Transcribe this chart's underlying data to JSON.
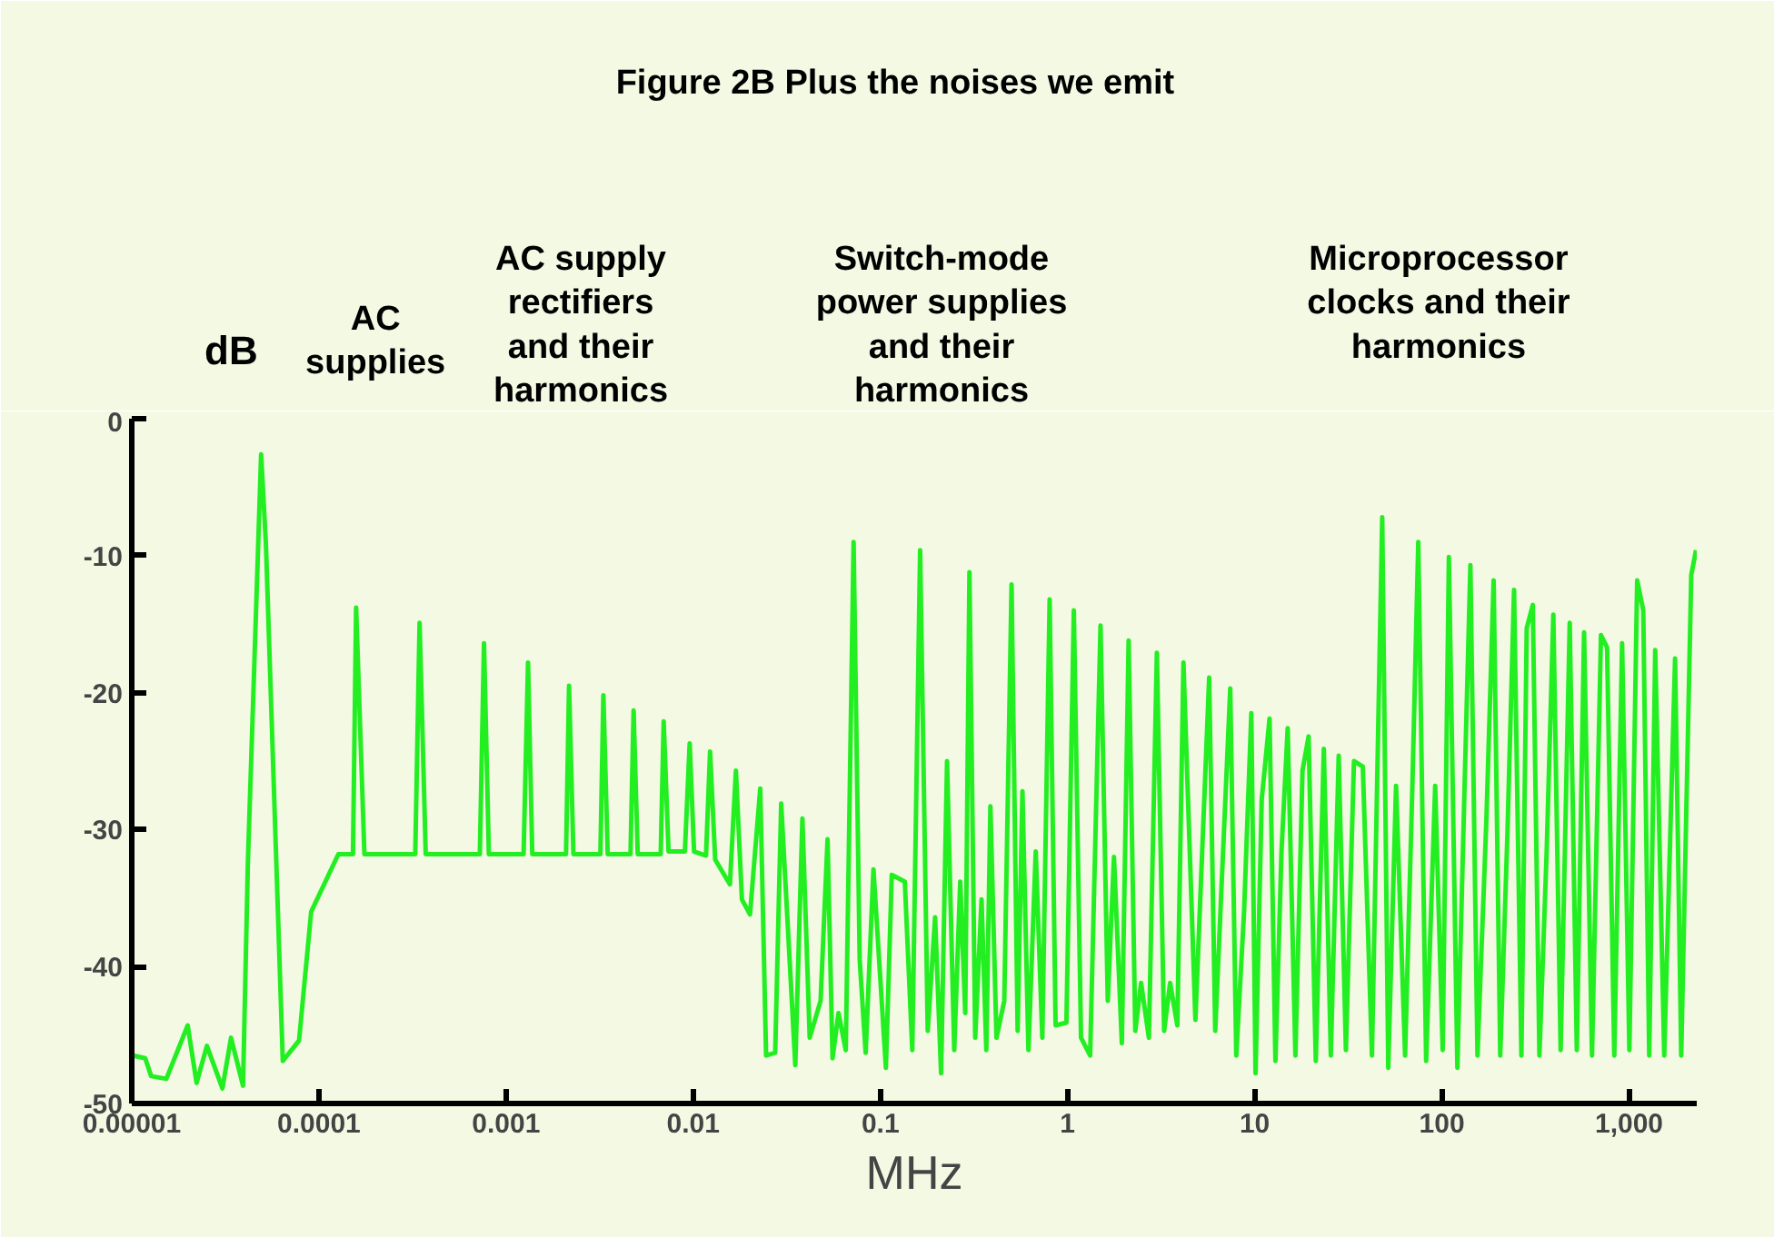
{
  "chart_data": {
    "type": "line",
    "title": "Figure 2B     Plus the noises we emit",
    "xlabel": "MHz",
    "ylabel": "dB",
    "annotations": [
      "AC\nsupplies",
      "AC supply\nrectifiers\nand their\nharmonics",
      "Switch-mode\npower supplies\nand their\nharmonics",
      "Microprocessor\nclocks and their\nharmonics"
    ],
    "log": "x",
    "grid": false,
    "marker": "none",
    "line_style": "solid",
    "xlim": [
      1e-05,
      2300
    ],
    "ylim": [
      -50,
      0
    ],
    "xticks": [
      {
        "value": 1e-05,
        "label": "0.00001"
      },
      {
        "value": 0.0001,
        "label": "0.0001"
      },
      {
        "value": 0.001,
        "label": "0.001"
      },
      {
        "value": 0.01,
        "label": "0.01"
      },
      0.1,
      1,
      10,
      100,
      {
        "value": 1000,
        "label": "1,000"
      }
    ],
    "yticks": [
      0,
      -10,
      -20,
      -30,
      -40,
      -50
    ],
    "series": [
      {
        "color": "#22ee22",
        "x": [
          1.02e-05,
          1.18e-05,
          1.27e-05,
          1.53e-05,
          1.99e-05,
          2.22e-05,
          2.52e-05,
          3.05e-05,
          3.39e-05,
          3.93e-05,
          4.17e-05,
          4.91e-05,
          5.21e-05,
          6.41e-05,
          7.83e-05,
          9.09e-05,
          0.000127,
          0.000152,
          0.000158,
          0.000175,
          0.000327,
          0.000345,
          0.000372,
          0.000724,
          0.000762,
          0.000809,
          0.00124,
          0.00131,
          0.00138,
          0.00209,
          0.00217,
          0.00229,
          0.00319,
          0.00331,
          0.00349,
          0.00462,
          0.0048,
          0.00505,
          0.0067,
          0.00695,
          0.00738,
          0.00902,
          0.00957,
          0.0101,
          0.0117,
          0.0123,
          0.0131,
          0.0157,
          0.0169,
          0.0182,
          0.0201,
          0.0228,
          0.0245,
          0.0274,
          0.0295,
          0.0351,
          0.0383,
          0.0419,
          0.0479,
          0.0522,
          0.0555,
          0.0597,
          0.0653,
          0.0719,
          0.0775,
          0.0834,
          0.0918,
          0.107,
          0.115,
          0.135,
          0.148,
          0.163,
          0.179,
          0.196,
          0.211,
          0.227,
          0.248,
          0.267,
          0.284,
          0.299,
          0.321,
          0.347,
          0.368,
          0.387,
          0.417,
          0.459,
          0.502,
          0.541,
          0.574,
          0.618,
          0.676,
          0.733,
          0.802,
          0.863,
          0.986,
          1.08,
          1.18,
          1.32,
          1.5,
          1.64,
          1.77,
          1.95,
          2.12,
          2.3,
          2.47,
          2.72,
          3.0,
          3.28,
          3.53,
          3.86,
          4.16,
          4.82,
          5.71,
          6.15,
          7.4,
          7.97,
          8.77,
          9.59,
          10.1,
          10.9,
          12.0,
          12.9,
          13.9,
          15.0,
          16.5,
          18.0,
          19.4,
          21.2,
          23.4,
          25.5,
          28.1,
          30.7,
          33.9,
          37.8,
          42.3,
          48.0,
          51.7,
          56.9,
          63.6,
          69.5,
          74.8,
          82.4,
          92.1,
          101,
          109,
          121,
          132,
          142,
          155,
          173,
          189,
          205,
          224,
          243,
          266,
          284,
          306,
          332,
          363,
          394,
          431,
          482,
          526,
          575,
          634,
          708,
          763,
          834,
          918,
          1004,
          1105,
          1191,
          1282,
          1380,
          1542,
          1762,
          1900,
          2150,
          2280
        ],
        "values": [
          -46.5,
          -46.7,
          -48.0,
          -48.2,
          -44.3,
          -48.5,
          -45.8,
          -48.9,
          -45.2,
          -48.7,
          -32.5,
          -2.6,
          -9.2,
          -46.9,
          -45.4,
          -36.0,
          -31.8,
          -31.8,
          -13.8,
          -31.8,
          -31.8,
          -14.9,
          -31.8,
          -31.8,
          -16.4,
          -31.8,
          -31.8,
          -17.8,
          -31.8,
          -31.8,
          -19.5,
          -31.8,
          -31.8,
          -20.2,
          -31.8,
          -31.8,
          -21.3,
          -31.8,
          -31.8,
          -22.1,
          -31.6,
          -31.6,
          -23.7,
          -31.6,
          -31.9,
          -24.3,
          -32.2,
          -34.0,
          -25.7,
          -35.1,
          -36.2,
          -27.0,
          -46.5,
          -46.3,
          -28.1,
          -47.2,
          -29.2,
          -45.2,
          -42.5,
          -30.7,
          -46.7,
          -43.4,
          -46.1,
          -9.0,
          -39.5,
          -46.3,
          -32.9,
          -47.4,
          -33.3,
          -33.8,
          -46.1,
          -9.6,
          -44.7,
          -36.4,
          -47.8,
          -25.0,
          -46.1,
          -33.8,
          -43.4,
          -11.2,
          -45.2,
          -35.1,
          -46.1,
          -28.3,
          -45.2,
          -42.5,
          -12.1,
          -44.7,
          -27.2,
          -46.1,
          -31.6,
          -45.2,
          -13.2,
          -44.3,
          -44.1,
          -14.0,
          -45.2,
          -46.5,
          -15.1,
          -42.5,
          -32.0,
          -45.6,
          -16.2,
          -44.7,
          -41.2,
          -45.2,
          -17.1,
          -44.7,
          -41.2,
          -44.3,
          -17.8,
          -43.9,
          -18.9,
          -44.7,
          -19.7,
          -46.5,
          -36.0,
          -21.5,
          -47.8,
          -27.8,
          -21.9,
          -46.9,
          -31.6,
          -22.6,
          -46.5,
          -25.7,
          -23.2,
          -46.9,
          -24.1,
          -46.5,
          -24.6,
          -46.1,
          -25.0,
          -25.4,
          -46.5,
          -7.2,
          -47.4,
          -26.8,
          -46.5,
          -27.0,
          -9.0,
          -46.9,
          -26.8,
          -46.1,
          -10.1,
          -47.4,
          -27.2,
          -10.7,
          -46.5,
          -29.2,
          -11.8,
          -46.5,
          -30.3,
          -12.5,
          -46.5,
          -15.3,
          -13.6,
          -46.5,
          -31.6,
          -14.3,
          -46.1,
          -14.9,
          -46.1,
          -15.6,
          -46.5,
          -15.8,
          -16.7,
          -46.5,
          -16.4,
          -46.1,
          -11.8,
          -14.0,
          -46.5,
          -16.9,
          -46.5,
          -17.5,
          -46.5,
          -11.4,
          -9.6
        ]
      }
    ]
  }
}
